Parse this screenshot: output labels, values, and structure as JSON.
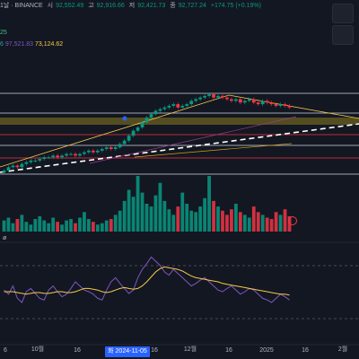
{
  "header": {
    "symbol_partial": "1날 · BINANCE",
    "open_label": "시",
    "open": "92,552.49",
    "high_label": "고",
    "high": "92,916.66",
    "low_label": "저",
    "low": "92,421.73",
    "close_label": "종",
    "close": "92,727.24",
    "change": "+174.75 (+0.19%)"
  },
  "left_partial_value": "25",
  "ma_row": {
    "v1": "6",
    "v2": "97,521.83",
    "v3": "73,124.62"
  },
  "indicator_label": "ø",
  "colors": {
    "up": "#089981",
    "down": "#f23645",
    "accent": "#2962ff",
    "ma_short": "#26a69a",
    "ma_mid": "#7e57c2",
    "ma_long": "#f7c948",
    "osc": "#7e57c2",
    "osc_signal": "#f7c948"
  },
  "chart_data": {
    "type": "candlestick",
    "x_ticks": [
      "6",
      "10월",
      "16",
      "2024-11-05",
      "16",
      "12월",
      "16",
      "2025",
      "16",
      "2월"
    ],
    "highlighted_x_label": "화 2024-11-05",
    "closes": [
      54,
      56,
      57,
      56,
      58,
      59,
      60,
      60,
      61,
      62,
      62,
      63,
      62,
      63,
      64,
      64,
      63,
      64,
      65,
      66,
      65,
      66,
      67,
      68,
      67,
      68,
      70,
      72,
      75,
      78,
      80,
      83,
      86,
      88,
      90,
      91,
      92,
      93,
      94,
      92,
      93,
      94,
      96,
      97,
      98,
      99,
      100,
      98,
      99,
      98,
      97,
      96,
      97,
      95,
      96,
      97,
      95,
      94,
      96,
      95,
      94,
      93,
      94,
      93,
      92
    ],
    "volume": [
      8,
      10,
      6,
      9,
      12,
      7,
      5,
      9,
      11,
      8,
      6,
      10,
      7,
      5,
      8,
      9,
      6,
      10,
      14,
      9,
      7,
      5,
      6,
      8,
      9,
      12,
      15,
      22,
      30,
      25,
      40,
      28,
      20,
      18,
      26,
      35,
      22,
      16,
      12,
      18,
      28,
      20,
      15,
      14,
      18,
      24,
      40,
      22,
      18,
      15,
      12,
      16,
      20,
      14,
      12,
      10,
      18,
      14,
      12,
      10,
      9,
      14,
      12,
      16,
      11
    ],
    "oscillator": [
      40,
      35,
      45,
      30,
      25,
      38,
      42,
      36,
      30,
      28,
      40,
      45,
      38,
      32,
      35,
      42,
      50,
      45,
      40,
      38,
      35,
      30,
      28,
      40,
      50,
      55,
      48,
      42,
      36,
      40,
      55,
      65,
      72,
      80,
      75,
      70,
      62,
      58,
      65,
      60,
      55,
      50,
      45,
      48,
      52,
      55,
      50,
      45,
      40,
      38,
      42,
      45,
      40,
      35,
      38,
      42,
      40,
      35,
      30,
      28,
      25,
      30,
      35,
      32,
      28
    ],
    "oscillator_signal": [
      38,
      38,
      38,
      37,
      36,
      35,
      36,
      37,
      37,
      36,
      36,
      37,
      38,
      38,
      37,
      37,
      38,
      40,
      42,
      42,
      41,
      40,
      38,
      37,
      38,
      40,
      42,
      43,
      42,
      41,
      42,
      45,
      50,
      56,
      62,
      66,
      68,
      67,
      66,
      65,
      63,
      60,
      57,
      55,
      54,
      53,
      52,
      51,
      50,
      48,
      47,
      46,
      45,
      44,
      43,
      42,
      41,
      40,
      39,
      38,
      37,
      36,
      35,
      35,
      34
    ]
  }
}
